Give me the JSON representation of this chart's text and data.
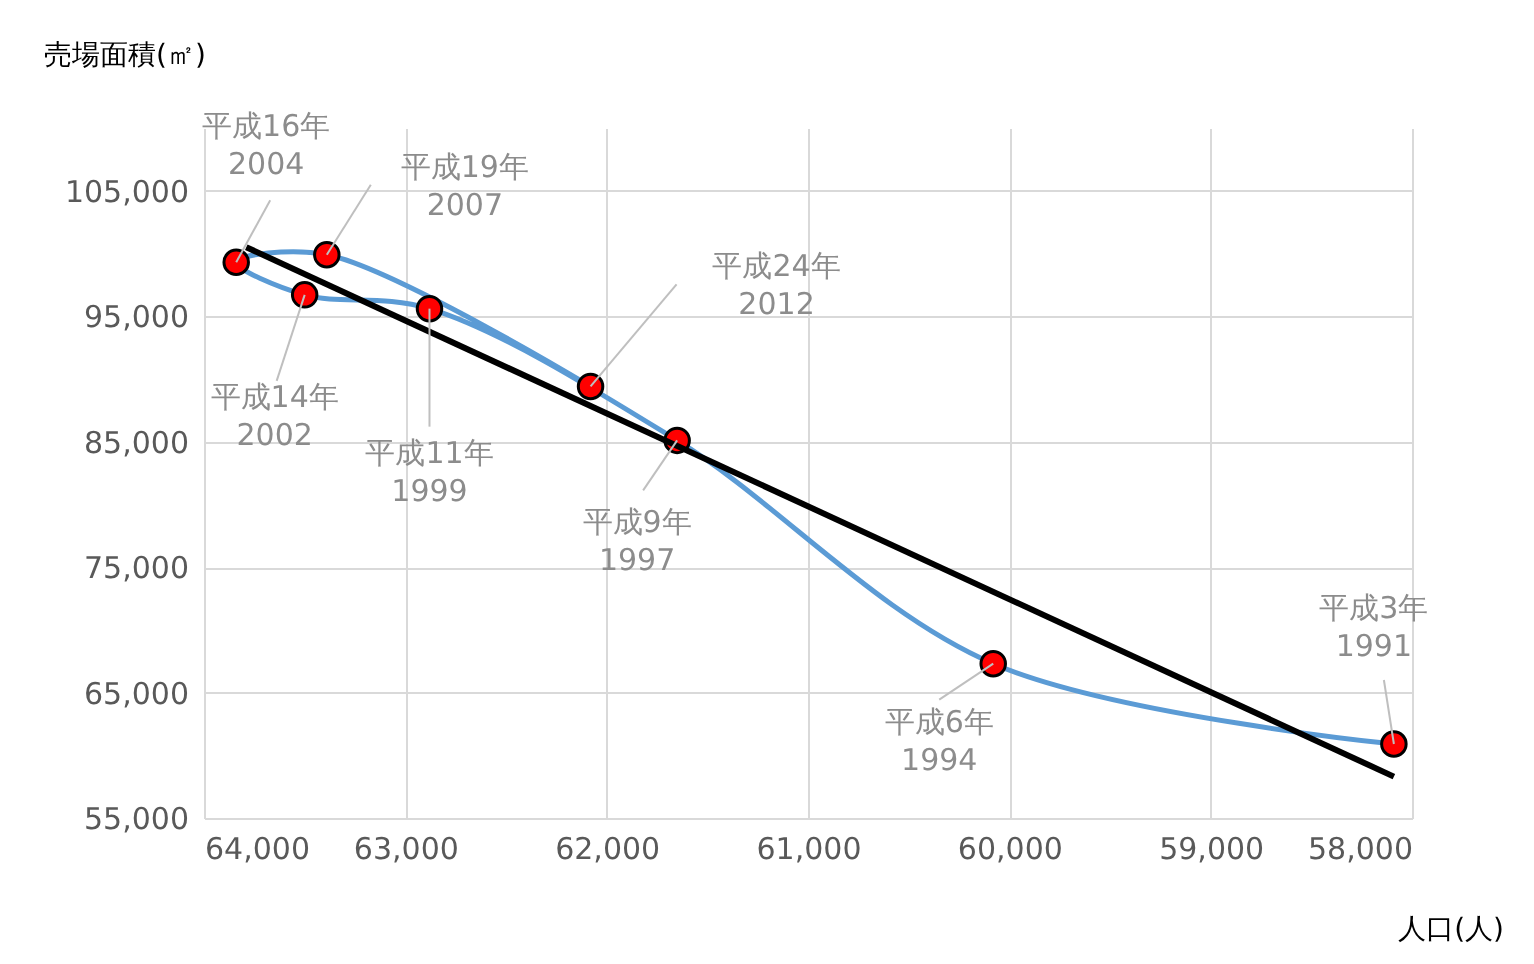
{
  "chart_data": {
    "type": "line",
    "xlabel": "人口(人)",
    "ylabel": "売場面積(㎡)",
    "xlim": [
      64000,
      58000
    ],
    "xticks": [
      {
        "value": 64000,
        "label": "64,000"
      },
      {
        "value": 63000,
        "label": "63,000"
      },
      {
        "value": 62000,
        "label": "62,000"
      },
      {
        "value": 61000,
        "label": "61,000"
      },
      {
        "value": 60000,
        "label": "60,000"
      },
      {
        "value": 59000,
        "label": "59,000"
      },
      {
        "value": 58000,
        "label": "58,000"
      }
    ],
    "ylim": [
      55000,
      110000
    ],
    "yticks": [
      {
        "value": 55000,
        "label": "55,000"
      },
      {
        "value": 65000,
        "label": "65,000"
      },
      {
        "value": 75000,
        "label": "75,000"
      },
      {
        "value": 85000,
        "label": "85,000"
      },
      {
        "value": 95000,
        "label": "95,000"
      },
      {
        "value": 105000,
        "label": "105,000"
      }
    ],
    "grid": true,
    "marker": "circle",
    "line_style": "solid",
    "series": [
      {
        "color": "#5b9bd5",
        "x": [
          58090,
          60080,
          61650,
          62880,
          63500,
          63840,
          63390,
          62080
        ],
        "values": [
          60900,
          67300,
          85100,
          95600,
          96700,
          99300,
          99900,
          89400
        ]
      },
      {
        "color": "#000000",
        "marker": "none",
        "x": [
          58090,
          63790
        ],
        "values": [
          58300,
          100500
        ]
      }
    ],
    "annotations": [
      {
        "text": "平成3年\n1991",
        "x": 58090,
        "y": 60900
      },
      {
        "text": "平成6年\n1994",
        "x": 60080,
        "y": 67300
      },
      {
        "text": "平成9年\n1997",
        "x": 61650,
        "y": 85100
      },
      {
        "text": "平成11年\n1999",
        "x": 62880,
        "y": 95600
      },
      {
        "text": "平成14年\n2002",
        "x": 63500,
        "y": 96700
      },
      {
        "text": "平成16年\n2004",
        "x": 63840,
        "y": 99300
      },
      {
        "text": "平成19年\n2007",
        "x": 63390,
        "y": 99900
      },
      {
        "text": "平成24年\n2012",
        "x": 62080,
        "y": 89400
      }
    ]
  }
}
